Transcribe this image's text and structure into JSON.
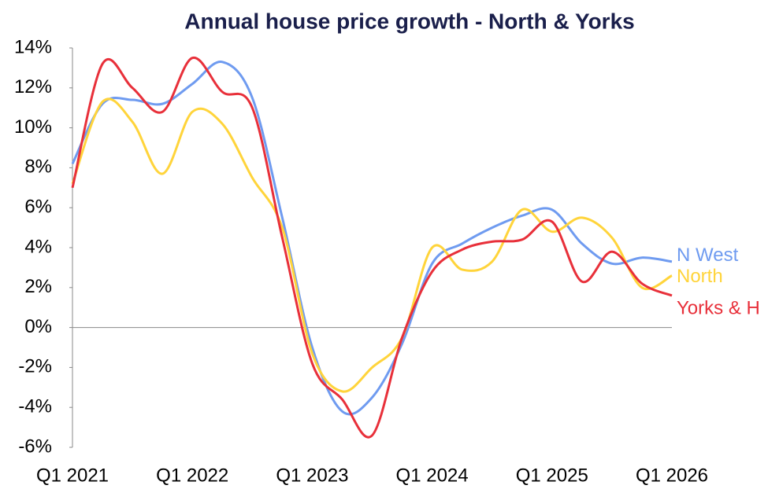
{
  "chart_data": {
    "type": "line",
    "title": "Annual house price growth - North & Yorks",
    "categories": [
      "Q1 2021",
      null,
      null,
      null,
      "Q1 2022",
      null,
      null,
      null,
      "Q1 2023",
      null,
      null,
      null,
      "Q1 2024",
      null,
      null,
      null,
      "Q1 2025",
      null,
      null,
      null,
      "Q1 2026"
    ],
    "series": [
      {
        "name": "N West",
        "color": "#6f9bf0",
        "values": [
          8.2,
          11.2,
          11.4,
          11.2,
          12.2,
          13.3,
          11.5,
          5.5,
          -1.0,
          -4.2,
          -3.5,
          -0.8,
          3.2,
          4.2,
          5.0,
          5.6,
          5.9,
          4.2,
          3.2,
          3.5,
          3.3
        ]
      },
      {
        "name": "North",
        "color": "#ffd43b",
        "values": [
          7.2,
          11.3,
          10.3,
          7.7,
          10.8,
          10.2,
          7.5,
          5.0,
          -1.3,
          -3.2,
          -2.0,
          -0.5,
          4.0,
          2.9,
          3.3,
          5.9,
          4.8,
          5.5,
          4.5,
          2.0,
          2.6
        ]
      },
      {
        "name": "Yorks & H",
        "color": "#e8303a",
        "values": [
          7.0,
          13.2,
          12.0,
          10.8,
          13.5,
          11.8,
          11.0,
          4.5,
          -1.8,
          -3.6,
          -5.4,
          -0.5,
          2.8,
          3.9,
          4.3,
          4.4,
          5.3,
          2.3,
          3.8,
          2.2,
          1.6
        ]
      }
    ],
    "ylim": [
      -6,
      14
    ],
    "yticks": [
      {
        "value": -6,
        "label": "-6%"
      },
      {
        "value": -4,
        "label": "-4%"
      },
      {
        "value": -2,
        "label": "-2%"
      },
      {
        "value": 0,
        "label": "0%"
      },
      {
        "value": 2,
        "label": "2%"
      },
      {
        "value": 4,
        "label": "4%"
      },
      {
        "value": 6,
        "label": "6%"
      },
      {
        "value": 8,
        "label": "8%"
      },
      {
        "value": 10,
        "label": "10%"
      },
      {
        "value": 12,
        "label": "12%"
      },
      {
        "value": 14,
        "label": "14%"
      }
    ]
  }
}
